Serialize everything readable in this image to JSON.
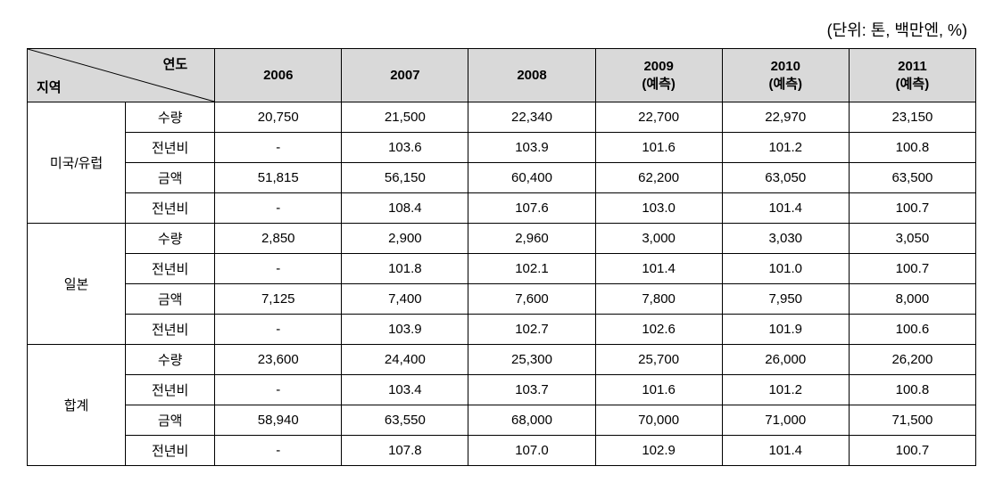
{
  "unit_label": "(단위: 톤, 백만엔, %)",
  "header": {
    "diag_top": "연도",
    "diag_bottom": "지역",
    "years": [
      "2006",
      "2007",
      "2008",
      "2009\n(예측)",
      "2010\n(예측)",
      "2011\n(예측)"
    ]
  },
  "regions": [
    {
      "name": "미국/유럽",
      "metrics": [
        {
          "label": "수량",
          "values": [
            "20,750",
            "21,500",
            "22,340",
            "22,700",
            "22,970",
            "23,150"
          ]
        },
        {
          "label": "전년비",
          "values": [
            "-",
            "103.6",
            "103.9",
            "101.6",
            "101.2",
            "100.8"
          ]
        },
        {
          "label": "금액",
          "values": [
            "51,815",
            "56,150",
            "60,400",
            "62,200",
            "63,050",
            "63,500"
          ]
        },
        {
          "label": "전년비",
          "values": [
            "-",
            "108.4",
            "107.6",
            "103.0",
            "101.4",
            "100.7"
          ]
        }
      ]
    },
    {
      "name": "일본",
      "metrics": [
        {
          "label": "수량",
          "values": [
            "2,850",
            "2,900",
            "2,960",
            "3,000",
            "3,030",
            "3,050"
          ]
        },
        {
          "label": "전년비",
          "values": [
            "-",
            "101.8",
            "102.1",
            "101.4",
            "101.0",
            "100.7"
          ]
        },
        {
          "label": "금액",
          "values": [
            "7,125",
            "7,400",
            "7,600",
            "7,800",
            "7,950",
            "8,000"
          ]
        },
        {
          "label": "전년비",
          "values": [
            "-",
            "103.9",
            "102.7",
            "102.6",
            "101.9",
            "100.6"
          ]
        }
      ]
    },
    {
      "name": "합계",
      "metrics": [
        {
          "label": "수량",
          "values": [
            "23,600",
            "24,400",
            "25,300",
            "25,700",
            "26,000",
            "26,200"
          ]
        },
        {
          "label": "전년비",
          "values": [
            "-",
            "103.4",
            "103.7",
            "101.6",
            "101.2",
            "100.8"
          ]
        },
        {
          "label": "금액",
          "values": [
            "58,940",
            "63,550",
            "68,000",
            "70,000",
            "71,000",
            "71,500"
          ]
        },
        {
          "label": "전년비",
          "values": [
            "-",
            "107.8",
            "107.0",
            "102.9",
            "101.4",
            "100.7"
          ]
        }
      ]
    }
  ],
  "styling": {
    "header_bg": "#d9d9d9",
    "border_color": "#000000",
    "text_color": "#000000",
    "font_size_cell": 15,
    "font_size_unit": 18
  }
}
